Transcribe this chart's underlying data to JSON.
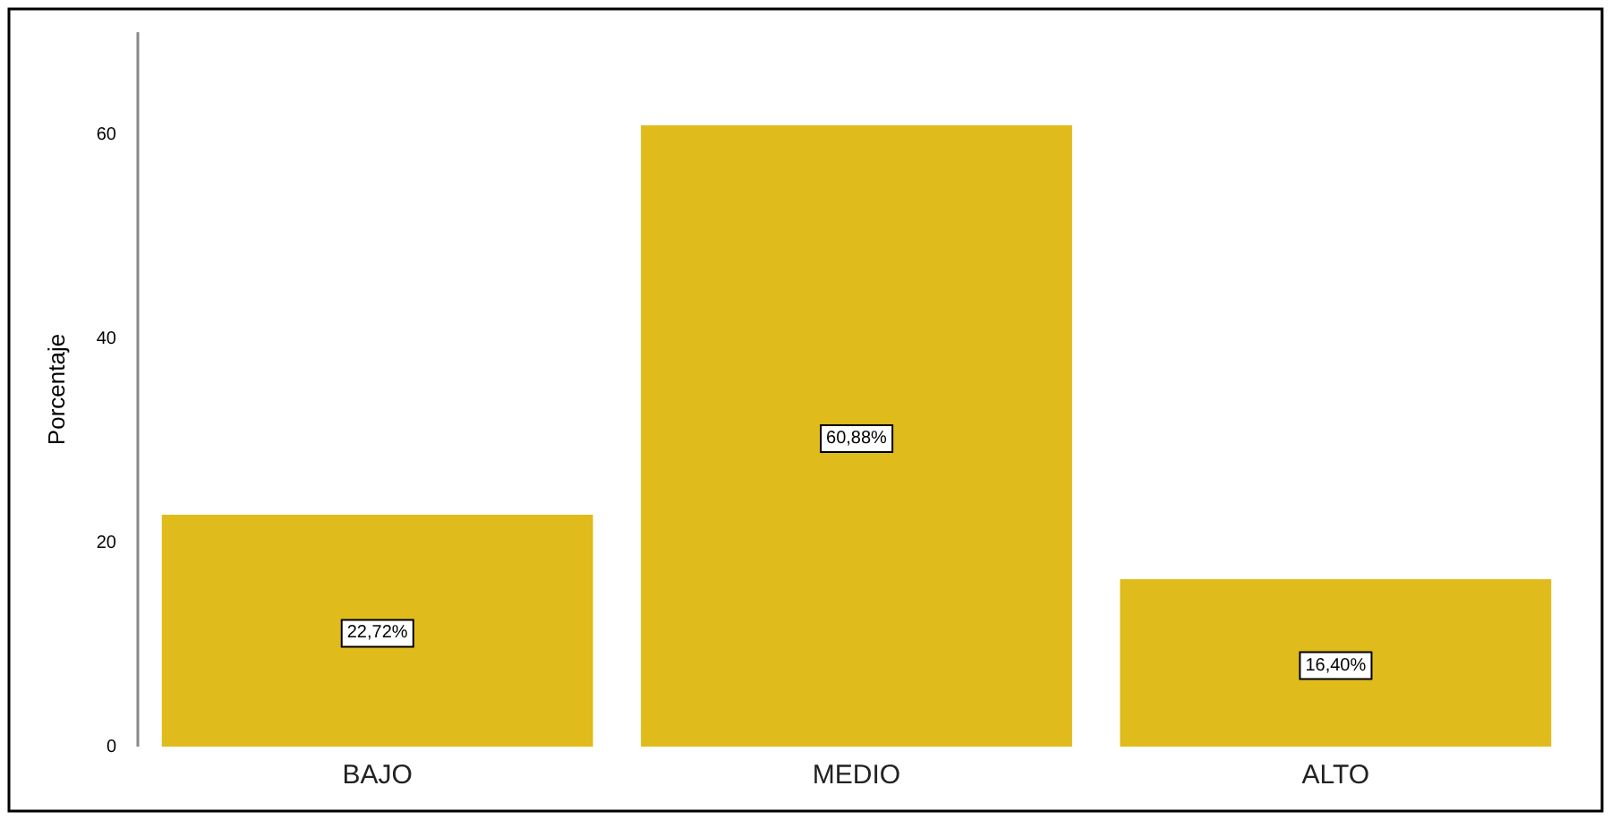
{
  "chart_data": {
    "type": "bar",
    "ylabel": "Porcentaje",
    "categories": [
      "BAJO",
      "MEDIO",
      "ALTO"
    ],
    "values": [
      22.72,
      60.88,
      16.4
    ],
    "value_labels": [
      "22,72%",
      "60,88%",
      "16,40%"
    ],
    "color": "#e0bb1c",
    "ylim": [
      0,
      70
    ],
    "yticks": [
      0,
      20,
      40,
      60
    ],
    "grid": false
  }
}
